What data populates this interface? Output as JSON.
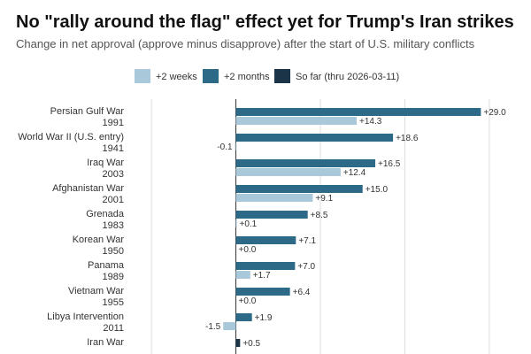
{
  "chart_data": {
    "type": "bar",
    "orientation": "horizontal",
    "title": "No \"rally around the flag\" effect yet for Trump's Iran strikes",
    "subtitle": "Change in net approval (approve minus disapprove) after the start of U.S. military conflicts",
    "xlim": [
      -12,
      32
    ],
    "grid": true,
    "legend_position": "top",
    "colors": {
      "two_weeks": "#a9c8da",
      "two_months": "#2c6a87",
      "so_far": "#1c3447",
      "grid": "#dddddd",
      "zero_line": "#333333"
    },
    "series": [
      {
        "key": "two_weeks",
        "name": "+2 weeks"
      },
      {
        "key": "two_months",
        "name": "+2 months"
      },
      {
        "key": "so_far",
        "name": "So far (thru 2026-03-11)"
      }
    ],
    "categories": [
      {
        "name": "Persian Gulf War",
        "year": "1991",
        "bars": [
          {
            "series": "two_months",
            "value": 29.0,
            "label": "+29.0"
          },
          {
            "series": "two_weeks",
            "value": 14.3,
            "label": "+14.3"
          }
        ]
      },
      {
        "name": "World War II (U.S. entry)",
        "year": "1941",
        "bars": [
          {
            "series": "two_months",
            "value": 18.6,
            "label": "+18.6"
          },
          {
            "series": "two_weeks",
            "value": -0.1,
            "label": "-0.1"
          }
        ]
      },
      {
        "name": "Iraq War",
        "year": "2003",
        "bars": [
          {
            "series": "two_months",
            "value": 16.5,
            "label": "+16.5"
          },
          {
            "series": "two_weeks",
            "value": 12.4,
            "label": "+12.4"
          }
        ]
      },
      {
        "name": "Afghanistan War",
        "year": "2001",
        "bars": [
          {
            "series": "two_months",
            "value": 15.0,
            "label": "+15.0"
          },
          {
            "series": "two_weeks",
            "value": 9.1,
            "label": "+9.1"
          }
        ]
      },
      {
        "name": "Grenada",
        "year": "1983",
        "bars": [
          {
            "series": "two_months",
            "value": 8.5,
            "label": "+8.5"
          },
          {
            "series": "two_weeks",
            "value": 0.1,
            "label": "+0.1"
          }
        ]
      },
      {
        "name": "Korean War",
        "year": "1950",
        "bars": [
          {
            "series": "two_months",
            "value": 7.1,
            "label": "+7.1"
          },
          {
            "series": "two_weeks",
            "value": 0.0,
            "label": "+0.0"
          }
        ]
      },
      {
        "name": "Panama",
        "year": "1989",
        "bars": [
          {
            "series": "two_months",
            "value": 7.0,
            "label": "+7.0"
          },
          {
            "series": "two_weeks",
            "value": 1.7,
            "label": "+1.7"
          }
        ]
      },
      {
        "name": "Vietnam War",
        "year": "1955",
        "bars": [
          {
            "series": "two_months",
            "value": 6.4,
            "label": "+6.4"
          },
          {
            "series": "two_weeks",
            "value": 0.0,
            "label": "+0.0"
          }
        ]
      },
      {
        "name": "Libya Intervention",
        "year": "2011",
        "bars": [
          {
            "series": "two_months",
            "value": 1.9,
            "label": "+1.9"
          },
          {
            "series": "two_weeks",
            "value": -1.5,
            "label": "-1.5"
          }
        ]
      },
      {
        "name": "Iran War",
        "year": "",
        "bars": [
          {
            "series": "so_far",
            "value": 0.5,
            "label": "+0.5"
          }
        ]
      }
    ]
  }
}
